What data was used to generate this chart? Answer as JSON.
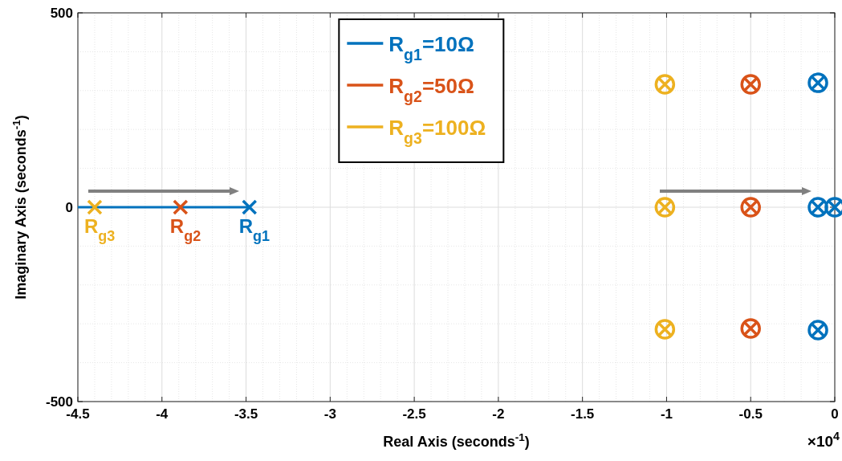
{
  "chart_data": {
    "type": "scatter",
    "xlabel": "Real Axis (seconds$^{-1}$)",
    "ylabel": "Imaginary Axis (seconds$^{-1}$)",
    "xlim": [
      -4.5,
      0
    ],
    "xticks": [
      -4.5,
      -4,
      -3.5,
      -3,
      -2.5,
      -2,
      -1.5,
      -1,
      -0.5,
      0
    ],
    "ylim": [
      -500,
      500
    ],
    "yticks": [
      -500,
      0,
      500
    ],
    "grid": true,
    "legend": "top",
    "series": [
      {
        "name": "R$_{g1}$=10Ω",
        "type": "line",
        "marker": "none",
        "color": "#0072bd",
        "x": [
          -4.5,
          -3.48
        ],
        "values": [
          0,
          0
        ]
      },
      {
        "marker": "cross",
        "color": "#0072bd",
        "x": [
          -3.48
        ],
        "values": [
          0
        ]
      },
      {
        "name": "R$_{g2}$=50Ω",
        "marker": "cross",
        "color": "#d95319",
        "x": [
          -3.89
        ],
        "values": [
          0
        ]
      },
      {
        "name": "R$_{g3}$=100Ω",
        "marker": "cross",
        "color": "#edb120",
        "x": [
          -4.4
        ],
        "values": [
          0
        ]
      },
      {
        "marker": "circle",
        "color": "#edb120",
        "x": [
          -1.01,
          -1.01,
          -1.01
        ],
        "values": [
          316,
          0,
          -314
        ]
      },
      {
        "marker": "circle",
        "color": "#d95319",
        "x": [
          -0.5,
          -0.5,
          -0.5
        ],
        "values": [
          316,
          0,
          -312
        ]
      },
      {
        "marker": "circle",
        "color": "#0072bd",
        "x": [
          -0.1,
          -0.1,
          -0.1,
          0
        ],
        "values": [
          320,
          0,
          -316,
          0
        ]
      }
    ],
    "annotations": [
      {
        "text": "R$_{g3}$",
        "x": -4.4,
        "y": 0
      },
      {
        "text": "R$_{g2}$",
        "x": -3.89,
        "y": 0
      },
      {
        "text": "R$_{g1}$",
        "x": -3.48,
        "y": 0
      },
      "×10$^{4}$"
    ]
  }
}
